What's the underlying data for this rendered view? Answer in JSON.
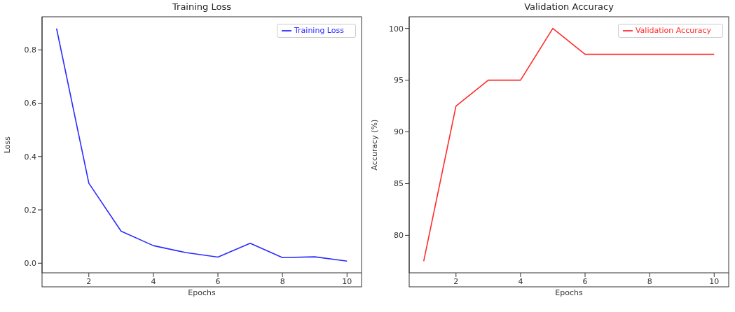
{
  "chart_data": [
    {
      "type": "line",
      "title": "Training Loss",
      "xlabel": "Epochs",
      "ylabel": "Loss",
      "x": [
        1,
        2,
        3,
        4,
        5,
        6,
        7,
        8,
        9,
        10
      ],
      "series": [
        {
          "name": "Training Loss",
          "color": "#2b2bff",
          "values": [
            0.88,
            0.3,
            0.12,
            0.066,
            0.04,
            0.023,
            0.075,
            0.021,
            0.024,
            0.008
          ]
        }
      ],
      "xlim": [
        0.55,
        10.45
      ],
      "xticks": [
        2,
        4,
        6,
        8,
        10
      ],
      "ylim": [
        -0.036,
        0.924
      ],
      "yticks": [
        {
          "value": 0,
          "label": "0.0"
        },
        0.2,
        0.4,
        0.6,
        0.8
      ],
      "legend": "top right"
    },
    {
      "type": "line",
      "title": "Validation Accuracy",
      "xlabel": "Epochs",
      "ylabel": "Accuracy (%)",
      "x": [
        1,
        2,
        3,
        4,
        5,
        6,
        7,
        8,
        9,
        10
      ],
      "series": [
        {
          "name": "Validation Accuracy",
          "color": "#ff2b2b",
          "values": [
            77.5,
            92.5,
            95,
            95,
            100,
            97.5,
            97.5,
            97.5,
            97.5,
            97.5
          ]
        }
      ],
      "xlim": [
        0.55,
        10.45
      ],
      "xticks": [
        2,
        4,
        6,
        8,
        10
      ],
      "ylim": [
        76.375,
        101.125
      ],
      "yticks": [
        80,
        85,
        90,
        95,
        100
      ],
      "legend": "top right"
    }
  ]
}
